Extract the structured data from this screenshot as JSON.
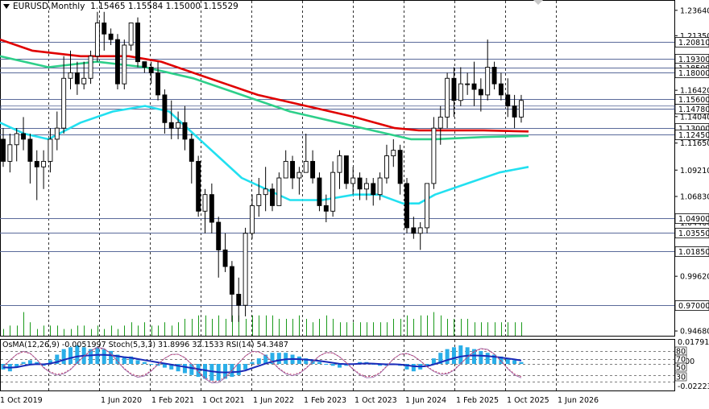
{
  "header": {
    "symbol": "EURUSD,Monthly",
    "ohlc": "1.15465 1.15584 1.15000 1.15529"
  },
  "indicator_header": "OsMA(12,26,9) -0.0051997 Stoch(5,3,3) 31.8996 32.1533 RSI(14) 54.3487",
  "colors": {
    "bull": "#ffffff",
    "bear": "#000000",
    "ma_red": "#e00000",
    "ma_green": "#2ecf8a",
    "ma_cyan": "#22e0f0",
    "volume": "#1a9a1a",
    "osma": "#2aaee8",
    "signal": "#1a2ab8",
    "stoch": "#9a6aaa",
    "level_line": "#5a6a9a",
    "label_bg": "#ffffff"
  },
  "price_axis": {
    "labels": [
      "1.23640",
      "1.21350",
      "1.18810",
      "1.16420",
      "1.14040",
      "1.11650",
      "1.09210",
      "1.06830",
      "1.04460",
      "1.01850",
      "0.99620",
      "0.97000",
      "0.94680"
    ],
    "marked_levels": [
      "1.20810",
      "1.19300",
      "1.18500",
      "1.18000",
      "1.15600",
      "1.14780",
      "1.13000",
      "1.12450",
      "1.04900",
      "1.03550",
      "1.01850",
      "0.97000"
    ]
  },
  "indicator_axis": {
    "labels": [
      "0.017912",
      "0.00",
      "-0.022235"
    ],
    "stoch_levels": [
      "80",
      "70",
      "50",
      "30"
    ]
  },
  "time_axis": [
    "1 Oct 2019",
    "1 Jun 2020",
    "1 Feb 2021",
    "1 Oct 2021",
    "1 Jun 2022",
    "1 Feb 2023",
    "1 Oct 2023",
    "1 Jun 2024",
    "1 Feb 2025",
    "1 Oct 2025",
    "1 Jun 2026"
  ],
  "chart_data": {
    "type": "candlestick",
    "symbol": "EURUSD",
    "timeframe": "Monthly",
    "y_range": [
      0.9425,
      1.245
    ],
    "candles": [
      [
        1.12,
        1.13,
        1.095,
        1.1
      ],
      [
        1.1,
        1.125,
        1.09,
        1.115
      ],
      [
        1.115,
        1.13,
        1.1,
        1.125
      ],
      [
        1.125,
        1.14,
        1.11,
        1.12
      ],
      [
        1.12,
        1.125,
        1.08,
        1.1
      ],
      [
        1.1,
        1.11,
        1.065,
        1.095
      ],
      [
        1.095,
        1.11,
        1.075,
        1.1
      ],
      [
        1.1,
        1.13,
        1.09,
        1.12
      ],
      [
        1.12,
        1.145,
        1.11,
        1.13
      ],
      [
        1.13,
        1.195,
        1.125,
        1.175
      ],
      [
        1.175,
        1.2,
        1.165,
        1.18
      ],
      [
        1.18,
        1.19,
        1.16,
        1.17
      ],
      [
        1.17,
        1.19,
        1.165,
        1.175
      ],
      [
        1.175,
        1.2,
        1.17,
        1.195
      ],
      [
        1.195,
        1.235,
        1.19,
        1.225
      ],
      [
        1.225,
        1.235,
        1.2,
        1.215
      ],
      [
        1.215,
        1.22,
        1.205,
        1.21
      ],
      [
        1.21,
        1.215,
        1.165,
        1.17
      ],
      [
        1.17,
        1.21,
        1.165,
        1.205
      ],
      [
        1.205,
        1.225,
        1.2,
        1.225
      ],
      [
        1.225,
        1.23,
        1.185,
        1.19
      ],
      [
        1.19,
        1.19,
        1.18,
        1.185
      ],
      [
        1.185,
        1.19,
        1.17,
        1.18
      ],
      [
        1.18,
        1.19,
        1.155,
        1.16
      ],
      [
        1.16,
        1.165,
        1.125,
        1.135
      ],
      [
        1.135,
        1.155,
        1.12,
        1.13
      ],
      [
        1.13,
        1.145,
        1.12,
        1.135
      ],
      [
        1.135,
        1.15,
        1.11,
        1.12
      ],
      [
        1.12,
        1.125,
        1.08,
        1.1
      ],
      [
        1.1,
        1.105,
        1.05,
        1.055
      ],
      [
        1.055,
        1.075,
        1.035,
        1.07
      ],
      [
        1.07,
        1.08,
        1.035,
        1.045
      ],
      [
        1.045,
        1.05,
        0.995,
        1.02
      ],
      [
        1.02,
        1.035,
        1.0,
        1.005
      ],
      [
        1.005,
        1.01,
        0.955,
        0.98
      ],
      [
        0.98,
        0.995,
        0.955,
        0.97
      ],
      [
        0.97,
        1.04,
        0.96,
        1.035
      ],
      [
        1.035,
        1.07,
        1.03,
        1.06
      ],
      [
        1.06,
        1.085,
        1.05,
        1.07
      ],
      [
        1.07,
        1.095,
        1.055,
        1.075
      ],
      [
        1.075,
        1.08,
        1.055,
        1.06
      ],
      [
        1.06,
        1.09,
        1.06,
        1.085
      ],
      [
        1.085,
        1.11,
        1.085,
        1.1
      ],
      [
        1.1,
        1.105,
        1.075,
        1.085
      ],
      [
        1.085,
        1.095,
        1.07,
        1.09
      ],
      [
        1.09,
        1.125,
        1.09,
        1.1
      ],
      [
        1.1,
        1.11,
        1.08,
        1.085
      ],
      [
        1.085,
        1.09,
        1.055,
        1.06
      ],
      [
        1.06,
        1.07,
        1.045,
        1.055
      ],
      [
        1.055,
        1.1,
        1.05,
        1.09
      ],
      [
        1.09,
        1.11,
        1.075,
        1.105
      ],
      [
        1.105,
        1.105,
        1.075,
        1.08
      ],
      [
        1.08,
        1.095,
        1.07,
        1.085
      ],
      [
        1.085,
        1.09,
        1.065,
        1.075
      ],
      [
        1.075,
        1.085,
        1.065,
        1.08
      ],
      [
        1.08,
        1.085,
        1.06,
        1.07
      ],
      [
        1.07,
        1.09,
        1.065,
        1.085
      ],
      [
        1.085,
        1.115,
        1.08,
        1.105
      ],
      [
        1.105,
        1.12,
        1.095,
        1.11
      ],
      [
        1.11,
        1.115,
        1.07,
        1.08
      ],
      [
        1.08,
        1.085,
        1.035,
        1.04
      ],
      [
        1.04,
        1.05,
        1.03,
        1.035
      ],
      [
        1.035,
        1.045,
        1.02,
        1.04
      ],
      [
        1.04,
        1.08,
        1.035,
        1.08
      ],
      [
        1.08,
        1.14,
        1.075,
        1.13
      ],
      [
        1.13,
        1.15,
        1.115,
        1.14
      ],
      [
        1.14,
        1.18,
        1.13,
        1.175
      ],
      [
        1.175,
        1.185,
        1.14,
        1.155
      ],
      [
        1.155,
        1.185,
        1.15,
        1.17
      ],
      [
        1.17,
        1.18,
        1.16,
        1.17
      ],
      [
        1.17,
        1.19,
        1.15,
        1.165
      ],
      [
        1.165,
        1.175,
        1.145,
        1.16
      ],
      [
        1.16,
        1.21,
        1.155,
        1.185
      ],
      [
        1.185,
        1.19,
        1.165,
        1.17
      ],
      [
        1.17,
        1.18,
        1.155,
        1.16
      ],
      [
        1.16,
        1.175,
        1.14,
        1.15
      ],
      [
        1.15,
        1.16,
        1.13,
        1.14
      ],
      [
        1.14,
        1.16,
        1.135,
        1.155
      ]
    ],
    "series": [
      {
        "name": "MA red",
        "values": [
          [
            0,
            1.21
          ],
          [
            40,
            1.2
          ],
          [
            100,
            1.195
          ],
          [
            160,
            1.195
          ],
          [
            200,
            1.19
          ],
          [
            260,
            1.175
          ],
          [
            320,
            1.16
          ],
          [
            380,
            1.15
          ],
          [
            440,
            1.14
          ],
          [
            490,
            1.13
          ],
          [
            520,
            1.128
          ],
          [
            560,
            1.128
          ],
          [
            600,
            1.128
          ],
          [
            656,
            1.127
          ]
        ]
      },
      {
        "name": "MA green",
        "values": [
          [
            0,
            1.195
          ],
          [
            60,
            1.185
          ],
          [
            120,
            1.19
          ],
          [
            180,
            1.185
          ],
          [
            240,
            1.175
          ],
          [
            300,
            1.16
          ],
          [
            360,
            1.145
          ],
          [
            420,
            1.135
          ],
          [
            480,
            1.125
          ],
          [
            510,
            1.12
          ],
          [
            540,
            1.12
          ],
          [
            600,
            1.122
          ],
          [
            656,
            1.123
          ]
        ]
      },
      {
        "name": "MA cyan",
        "values": [
          [
            0,
            1.135
          ],
          [
            30,
            1.125
          ],
          [
            60,
            1.12
          ],
          [
            100,
            1.135
          ],
          [
            140,
            1.145
          ],
          [
            180,
            1.15
          ],
          [
            210,
            1.145
          ],
          [
            240,
            1.125
          ],
          [
            270,
            1.105
          ],
          [
            300,
            1.085
          ],
          [
            330,
            1.075
          ],
          [
            360,
            1.065
          ],
          [
            400,
            1.065
          ],
          [
            440,
            1.07
          ],
          [
            470,
            1.07
          ],
          [
            500,
            1.062
          ],
          [
            520,
            1.062
          ],
          [
            540,
            1.07
          ],
          [
            580,
            1.08
          ],
          [
            620,
            1.09
          ],
          [
            656,
            1.095
          ]
        ]
      }
    ],
    "volume": [
      2,
      3,
      3,
      7,
      4,
      2,
      3,
      3,
      3,
      2,
      2,
      3,
      3,
      2,
      3,
      2,
      3,
      2,
      3,
      4,
      3,
      4,
      3,
      3,
      4,
      3,
      4,
      5,
      5,
      6,
      6,
      5,
      6,
      5,
      6,
      6,
      5,
      6,
      6,
      6,
      6,
      5,
      5,
      5,
      6,
      5,
      4,
      5,
      6,
      5,
      4,
      4,
      4,
      4,
      4,
      4,
      4,
      4,
      5,
      5,
      6,
      5,
      6,
      6,
      7,
      6,
      5,
      5,
      5,
      5,
      4,
      4,
      4,
      4,
      4,
      4,
      4,
      4
    ],
    "osma": [
      -3,
      -4,
      -2,
      1,
      2,
      1,
      -1,
      2,
      5,
      8,
      9,
      10,
      9,
      8,
      9,
      8,
      7,
      5,
      4,
      4,
      2,
      1,
      0,
      -1,
      -2,
      -3,
      -4,
      -5,
      -6,
      -7,
      -8,
      -9,
      -9,
      -8,
      -7,
      -6,
      -3,
      1,
      3,
      5,
      6,
      6,
      6,
      5,
      4,
      3,
      2,
      1,
      0,
      -1,
      -2,
      -1,
      0,
      1,
      1,
      0,
      -1,
      -1,
      0,
      -1,
      -3,
      -4,
      -3,
      -1,
      3,
      6,
      8,
      9,
      10,
      9,
      8,
      7,
      6,
      5,
      4,
      3,
      2,
      1
    ],
    "osma_range": [
      -0.022235,
      0.017912
    ],
    "stoch_range": [
      0,
      100
    ]
  }
}
